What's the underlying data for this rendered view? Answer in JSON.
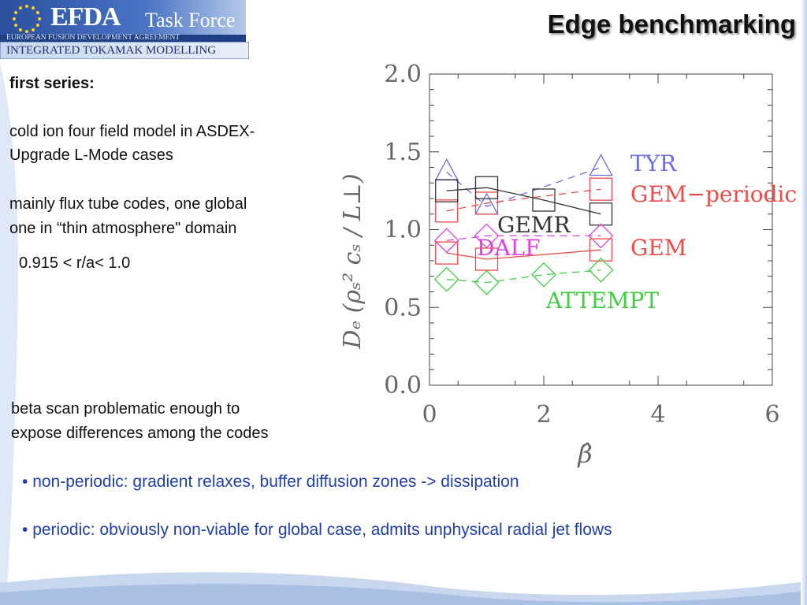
{
  "logo": {
    "name": "EFDA",
    "suffix": "Task Force",
    "org": "EUROPEAN FUSION DEVELOPMENT AGREEMENT",
    "program": "INTEGRATED TOKAMAK MODELLING"
  },
  "title": "Edge benchmarking",
  "left": {
    "heading": "first series:",
    "model_line1": "cold ion four field model in ASDEX-",
    "model_line2": "Upgrade L-Mode cases",
    "codes_line1": "mainly flux tube codes, one global",
    "codes_line2": "one in “thin atmosphere\" domain",
    "range": "0.915 < r/a< 1.0",
    "beta_line1": "beta scan problematic enough to",
    "beta_line2": "expose differences among the codes"
  },
  "bullets": [
    "non-periodic: gradient relaxes, buffer diffusion zones -> dissipation",
    "periodic: obviously non-viable for global case, admits unphysical radial jet flows"
  ],
  "colors": {
    "bullet_text": "#1f3faa",
    "title_shadow": "#9a9a9a",
    "logo_blue": "#2b4f9e"
  },
  "chart_data": {
    "type": "scatter",
    "title": "",
    "xlabel": "β̂",
    "ylabel": "Dₑ (ρₛ² cₛ / L⊥)",
    "xlim": [
      0,
      6
    ],
    "ylim": [
      0,
      2
    ],
    "xticks": [
      "0",
      "2",
      "4",
      "6"
    ],
    "yticks": [
      "0.0",
      "0.5",
      "1.0",
      "1.5",
      "2.0"
    ],
    "series": [
      {
        "name": "TYR",
        "color": "#6c6ce6",
        "marker": "triangle",
        "dash": true,
        "x": [
          0.3,
          1.0,
          3.0
        ],
        "y": [
          1.37,
          1.15,
          1.4
        ]
      },
      {
        "name": "GEM−periodic",
        "color": "#ee4a4a",
        "marker": "square",
        "dash": true,
        "x": [
          0.3,
          1.0,
          3.0
        ],
        "y": [
          1.12,
          1.17,
          1.26
        ]
      },
      {
        "name": "GEMR",
        "color": "#333333",
        "marker": "square",
        "dash": false,
        "x": [
          0.3,
          1.0,
          2.0,
          3.0
        ],
        "y": [
          1.25,
          1.27,
          1.19,
          1.1
        ]
      },
      {
        "name": "DALF",
        "color": "#e040e0",
        "marker": "diamond",
        "dash": true,
        "x": [
          0.3,
          1.0,
          3.0
        ],
        "y": [
          0.93,
          0.96,
          0.96
        ]
      },
      {
        "name": "GEM",
        "color": "#ee4a4a",
        "marker": "square",
        "dash": false,
        "x": [
          0.3,
          1.0,
          3.0
        ],
        "y": [
          0.85,
          0.81,
          0.87
        ]
      },
      {
        "name": "ATTEMPT",
        "color": "#3ecf3e",
        "marker": "diamond",
        "dash": true,
        "x": [
          0.3,
          1.0,
          2.0,
          3.0
        ],
        "y": [
          0.68,
          0.66,
          0.71,
          0.74
        ]
      }
    ]
  }
}
